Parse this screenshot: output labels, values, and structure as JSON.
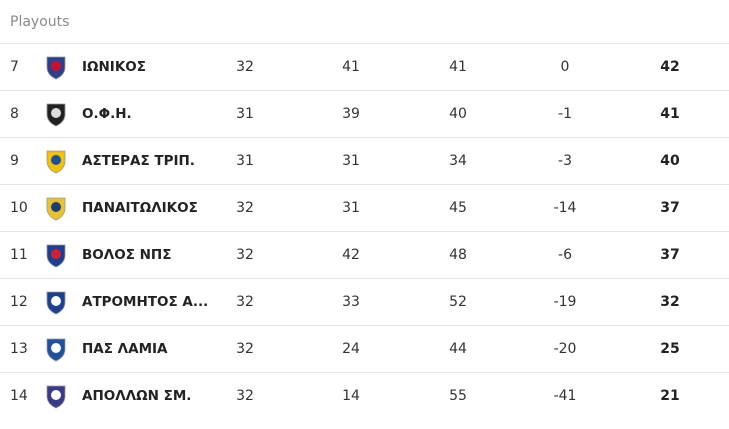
{
  "header": {
    "title": "Playouts"
  },
  "table": {
    "rows": [
      [
        7,
        "ΙΩΝΙΚΟΣ",
        32,
        41,
        41,
        0,
        42
      ],
      [
        8,
        "Ο.Φ.Η.",
        31,
        39,
        40,
        -1,
        41
      ],
      [
        9,
        "ΑΣΤΕΡΑΣ ΤΡΙΠ.",
        31,
        31,
        34,
        -3,
        40
      ],
      [
        10,
        "ΠΑΝΑΙΤΩΛΙΚΟΣ",
        32,
        31,
        45,
        -14,
        37
      ],
      [
        11,
        "ΒΟΛΟΣ ΝΠΣ",
        32,
        42,
        48,
        -6,
        37
      ],
      [
        12,
        "ΑΤΡΟΜΗΤΟΣ Α...",
        32,
        33,
        52,
        -19,
        32
      ],
      [
        13,
        "ΠΑΣ ΛΑΜΙΑ",
        32,
        24,
        44,
        -20,
        25
      ],
      [
        14,
        "ΑΠΟΛΛΩΝ ΣΜ.",
        32,
        14,
        55,
        -41,
        21
      ]
    ]
  }
}
